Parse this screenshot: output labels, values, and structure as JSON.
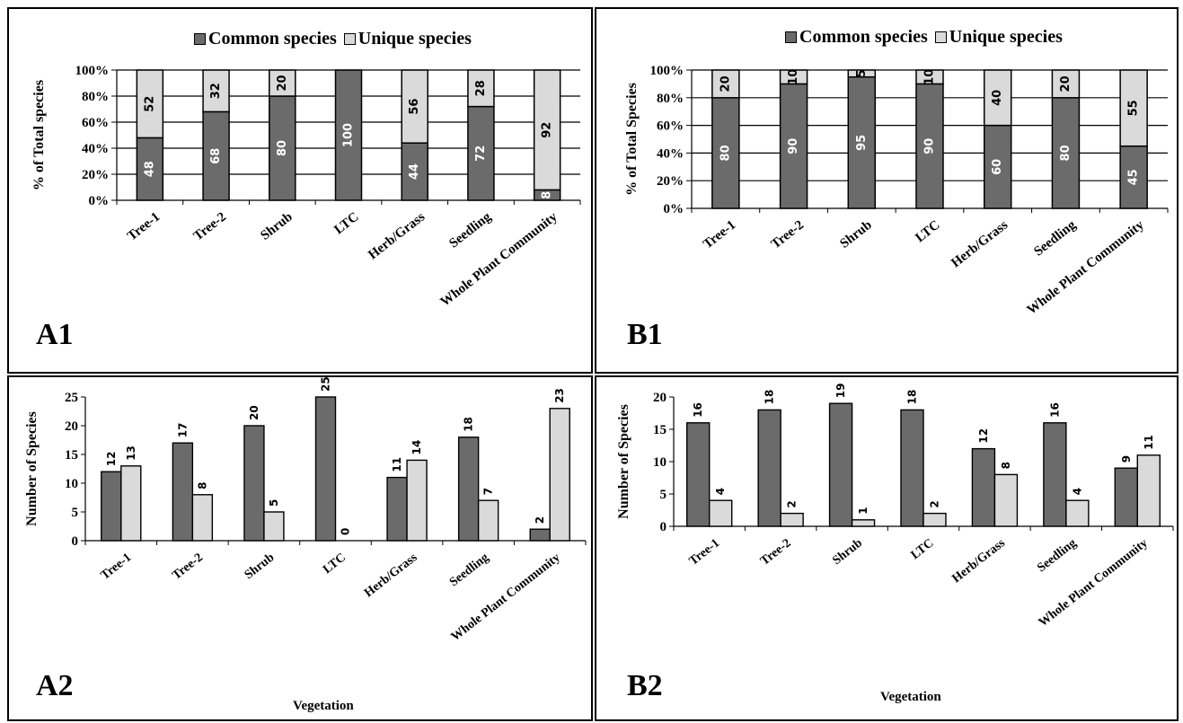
{
  "colors": {
    "common": "#6b6b6b",
    "unique": "#dadada",
    "border": "#000000"
  },
  "legend": {
    "common": "Common species",
    "unique": "Unique species"
  },
  "chart_data": [
    {
      "id": "A1",
      "type": "bar",
      "stacked": true,
      "label": "A1",
      "ylabel": "% of Total species",
      "xlabel": "",
      "ylim": [
        0,
        100
      ],
      "ytick_labels": [
        "0%",
        "20%",
        "40%",
        "60%",
        "80%",
        "100%"
      ],
      "categories": [
        "Tree-1",
        "Tree-2",
        "Shrub",
        "LTC",
        "Herb/Grass",
        "Seedling",
        "Whole Plant Community"
      ],
      "series": [
        {
          "name": "Common species",
          "values": [
            48,
            68,
            80,
            100,
            44,
            72,
            8
          ],
          "labels": [
            "48",
            "68",
            "80",
            "100",
            "44",
            "72",
            "8"
          ]
        },
        {
          "name": "Unique species",
          "values": [
            52,
            32,
            20,
            0,
            56,
            28,
            92
          ],
          "labels": [
            "52",
            "32",
            "20",
            "",
            "56",
            "28",
            "92"
          ]
        }
      ],
      "legend": "top"
    },
    {
      "id": "B1",
      "type": "bar",
      "stacked": true,
      "label": "B1",
      "ylabel": "% of Total Species",
      "xlabel": "",
      "ylim": [
        0,
        100
      ],
      "ytick_labels": [
        "0%",
        "20%",
        "40%",
        "60%",
        "80%",
        "100%"
      ],
      "categories": [
        "Tree-1",
        "Tree-2",
        "Shrub",
        "LTC",
        "Herb/Grass",
        "Seedling",
        "Whole Plant Community"
      ],
      "series": [
        {
          "name": "Common species",
          "values": [
            80,
            90,
            95,
            90,
            60,
            80,
            45
          ],
          "labels": [
            "80",
            "90",
            "95",
            "90",
            "60",
            "80",
            "45"
          ]
        },
        {
          "name": "Unique species",
          "values": [
            20,
            10,
            5,
            10,
            40,
            20,
            55
          ],
          "labels": [
            "20",
            "10",
            "5",
            "10",
            "40",
            "20",
            "55"
          ]
        }
      ],
      "legend": "top"
    },
    {
      "id": "A2",
      "type": "bar",
      "stacked": false,
      "label": "A2",
      "ylabel": "Number of Species",
      "xlabel": "Vegetation",
      "ylim": [
        0,
        25
      ],
      "ytick_labels": [
        "0",
        "5",
        "10",
        "15",
        "20",
        "25"
      ],
      "categories": [
        "Tree-1",
        "Tree-2",
        "Shrub",
        "LTC",
        "Herb/Grass",
        "Seedling",
        "Whole Plant Community"
      ],
      "series": [
        {
          "name": "Common species",
          "values": [
            12,
            17,
            20,
            25,
            11,
            18,
            2
          ],
          "labels": [
            "12",
            "17",
            "20",
            "25",
            "11",
            "18",
            "2"
          ]
        },
        {
          "name": "Unique species",
          "values": [
            13,
            8,
            5,
            0,
            14,
            7,
            23
          ],
          "labels": [
            "13",
            "8",
            "5",
            "0",
            "14",
            "7",
            "23"
          ]
        }
      ]
    },
    {
      "id": "B2",
      "type": "bar",
      "stacked": false,
      "label": "B2",
      "ylabel": "Number of Species",
      "xlabel": "Vegetation",
      "ylim": [
        0,
        20
      ],
      "ytick_labels": [
        "0",
        "5",
        "10",
        "15",
        "20"
      ],
      "categories": [
        "Tree-1",
        "Tree-2",
        "Shrub",
        "LTC",
        "Herb/Grass",
        "Seedling",
        "Whole Plant Community"
      ],
      "series": [
        {
          "name": "Common species",
          "values": [
            16,
            18,
            19,
            18,
            12,
            16,
            9
          ],
          "labels": [
            "16",
            "18",
            "19",
            "18",
            "12",
            "16",
            "9"
          ]
        },
        {
          "name": "Unique species",
          "values": [
            4,
            2,
            1,
            2,
            8,
            4,
            11
          ],
          "labels": [
            "4",
            "2",
            "1",
            "2",
            "8",
            "4",
            "11"
          ]
        }
      ]
    }
  ]
}
